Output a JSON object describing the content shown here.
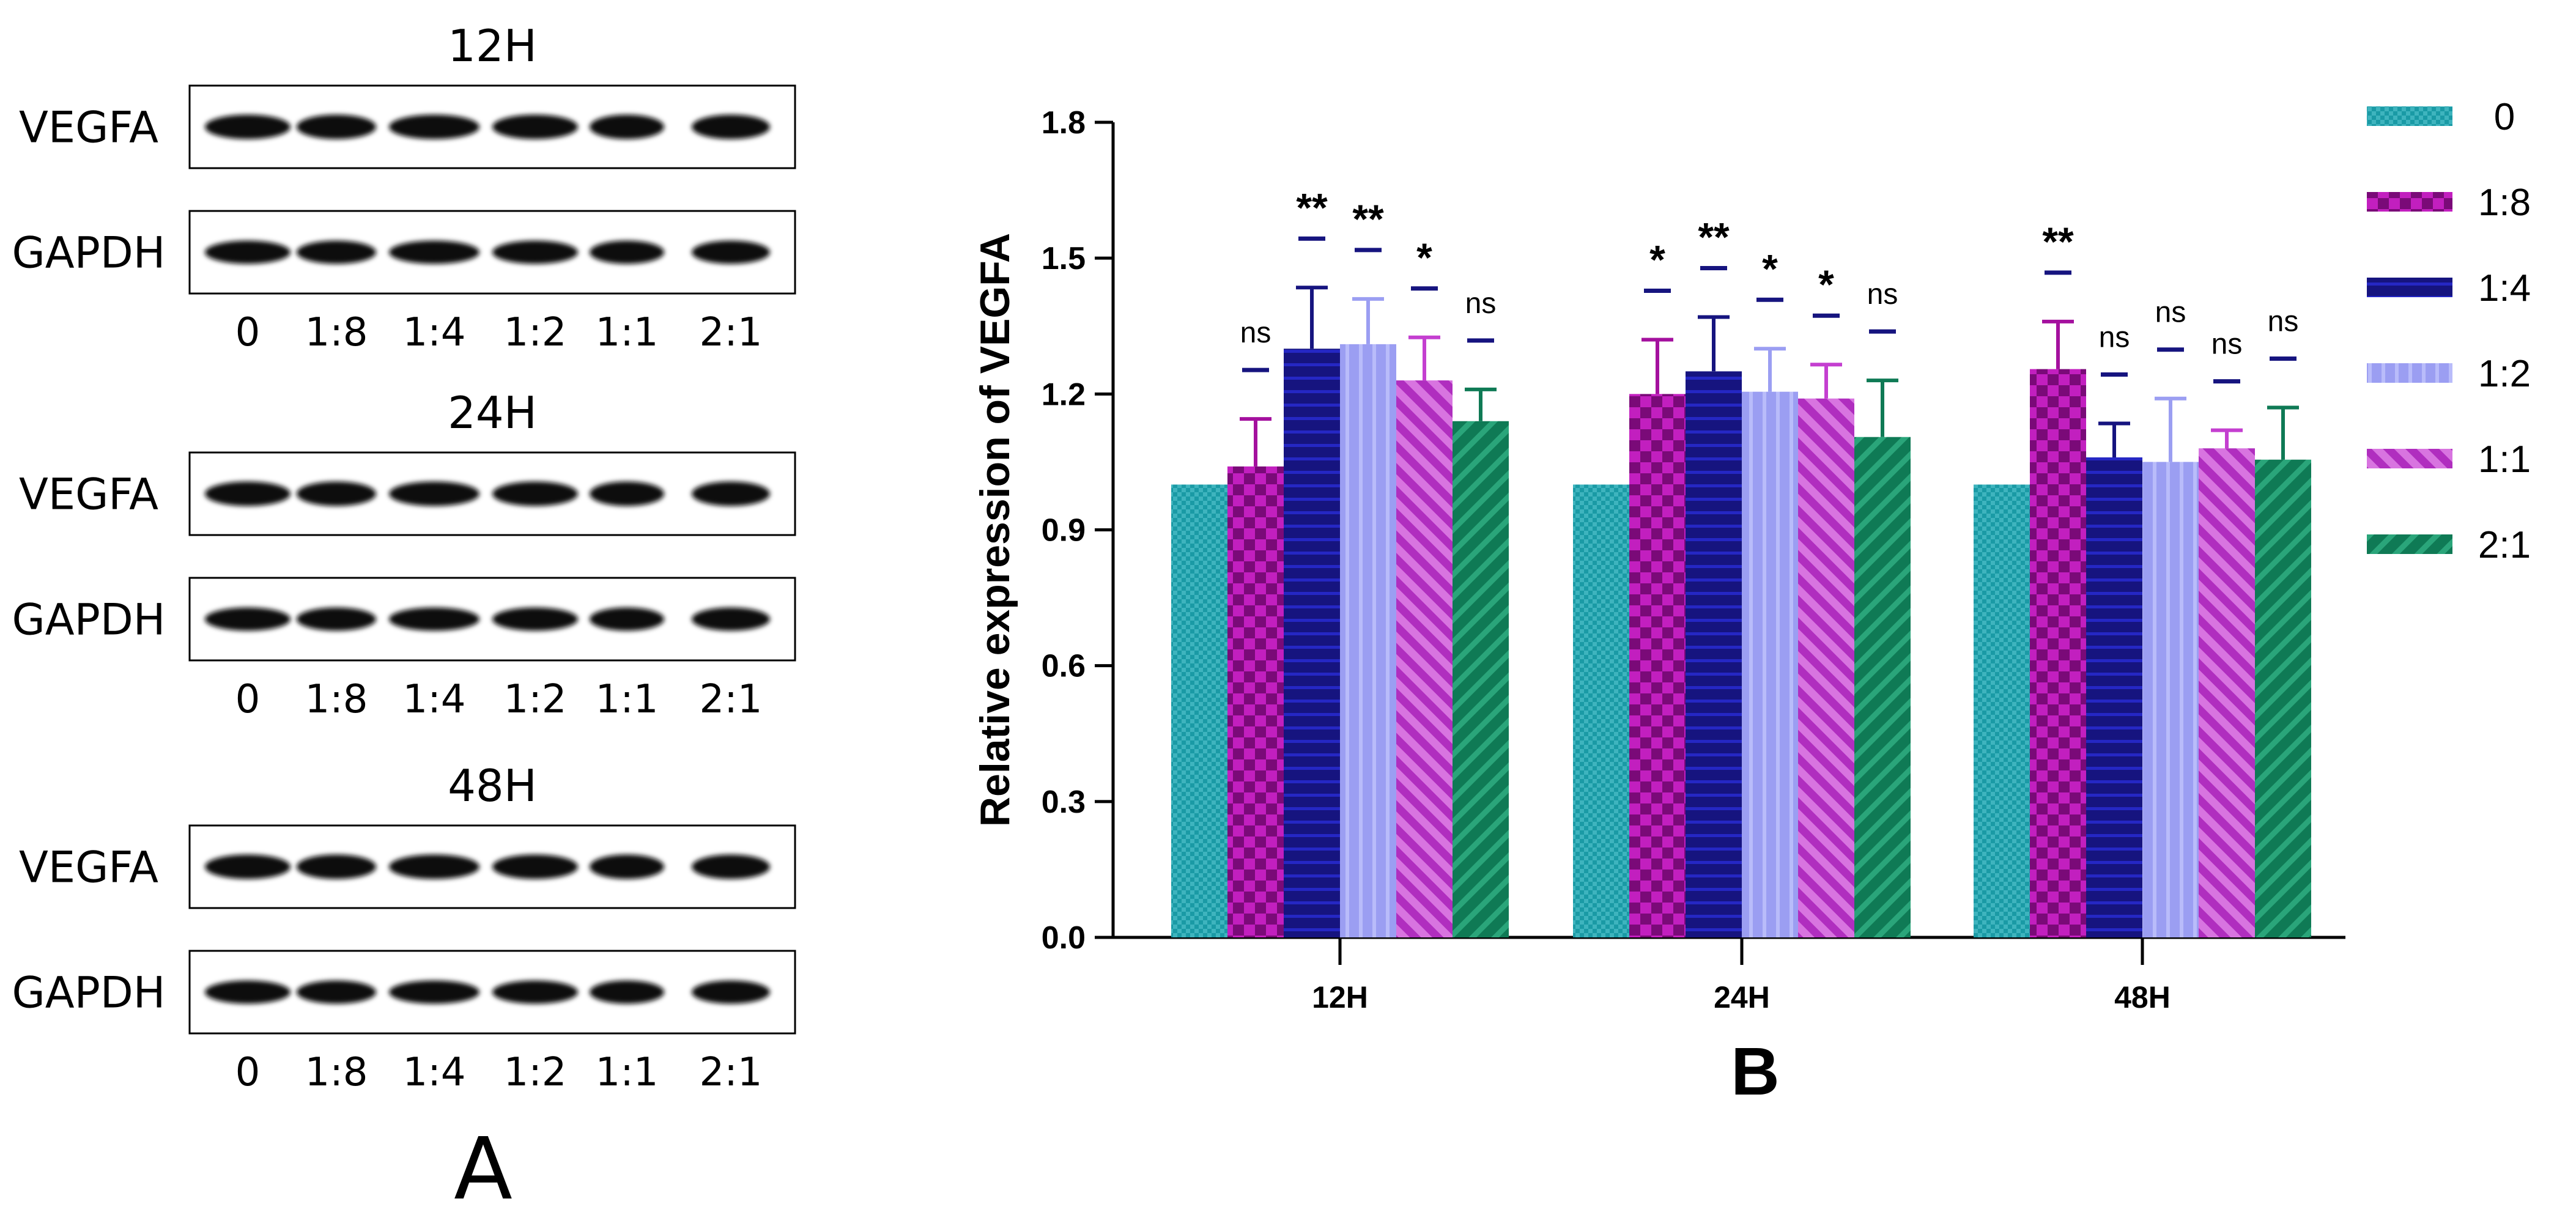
{
  "panel_a": {
    "label": "A",
    "blots": [
      {
        "time": "12H",
        "rows": [
          "VEGFA",
          "GAPDH"
        ],
        "lanes": [
          "0",
          "1:8",
          "1:4",
          "1:2",
          "1:1",
          "2:1"
        ]
      },
      {
        "time": "24H",
        "rows": [
          "VEGFA",
          "GAPDH"
        ],
        "lanes": [
          "0",
          "1:8",
          "1:4",
          "1:2",
          "1:1",
          "2:1"
        ]
      },
      {
        "time": "48H",
        "rows": [
          "VEGFA",
          "GAPDH"
        ],
        "lanes": [
          "0",
          "1:8",
          "1:4",
          "1:2",
          "1:1",
          "2:1"
        ]
      }
    ]
  },
  "panel_b": {
    "label": "B"
  },
  "colors": {
    "0": "#1a9aa5",
    "1:8": "#a4109e",
    "1:4": "#16147f",
    "1:2": "#9b9ef2",
    "1:1": "#c43fd0",
    "2:1": "#0f7a55"
  },
  "chart_data": {
    "type": "bar",
    "title": "",
    "xlabel": "",
    "ylabel": "Relative expression of VEGFA",
    "ylim": [
      0,
      1.8
    ],
    "yticks": [
      "0.0",
      "0.3",
      "0.6",
      "0.9",
      "1.2",
      "1.5",
      "1.8"
    ],
    "categories": [
      "12H",
      "24H",
      "48H"
    ],
    "series": [
      {
        "name": "0",
        "values": [
          1.0,
          1.0,
          1.0
        ],
        "errors": [
          0,
          0,
          0
        ],
        "significance": [
          "",
          "",
          ""
        ]
      },
      {
        "name": "1:8",
        "values": [
          1.04,
          1.2,
          1.255
        ],
        "errors": [
          0.105,
          0.12,
          0.105
        ],
        "significance": [
          "ns",
          "*",
          "**"
        ]
      },
      {
        "name": "1:4",
        "values": [
          1.3,
          1.25,
          1.06
        ],
        "errors": [
          0.135,
          0.12,
          0.075
        ],
        "significance": [
          "**",
          "**",
          "ns"
        ]
      },
      {
        "name": "1:2",
        "values": [
          1.31,
          1.205,
          1.05
        ],
        "errors": [
          0.1,
          0.095,
          0.14
        ],
        "significance": [
          "**",
          "*",
          "ns"
        ]
      },
      {
        "name": "1:1",
        "values": [
          1.23,
          1.19,
          1.08
        ],
        "errors": [
          0.095,
          0.075,
          0.04
        ],
        "significance": [
          "*",
          "*",
          "ns"
        ]
      },
      {
        "name": "2:1",
        "values": [
          1.14,
          1.105,
          1.055
        ],
        "errors": [
          0.07,
          0.125,
          0.115
        ],
        "significance": [
          "ns",
          "ns",
          "ns"
        ]
      }
    ],
    "legend": [
      "0",
      "1:8",
      "1:4",
      "1:2",
      "1:1",
      "2:1"
    ],
    "legend_position": "right"
  }
}
